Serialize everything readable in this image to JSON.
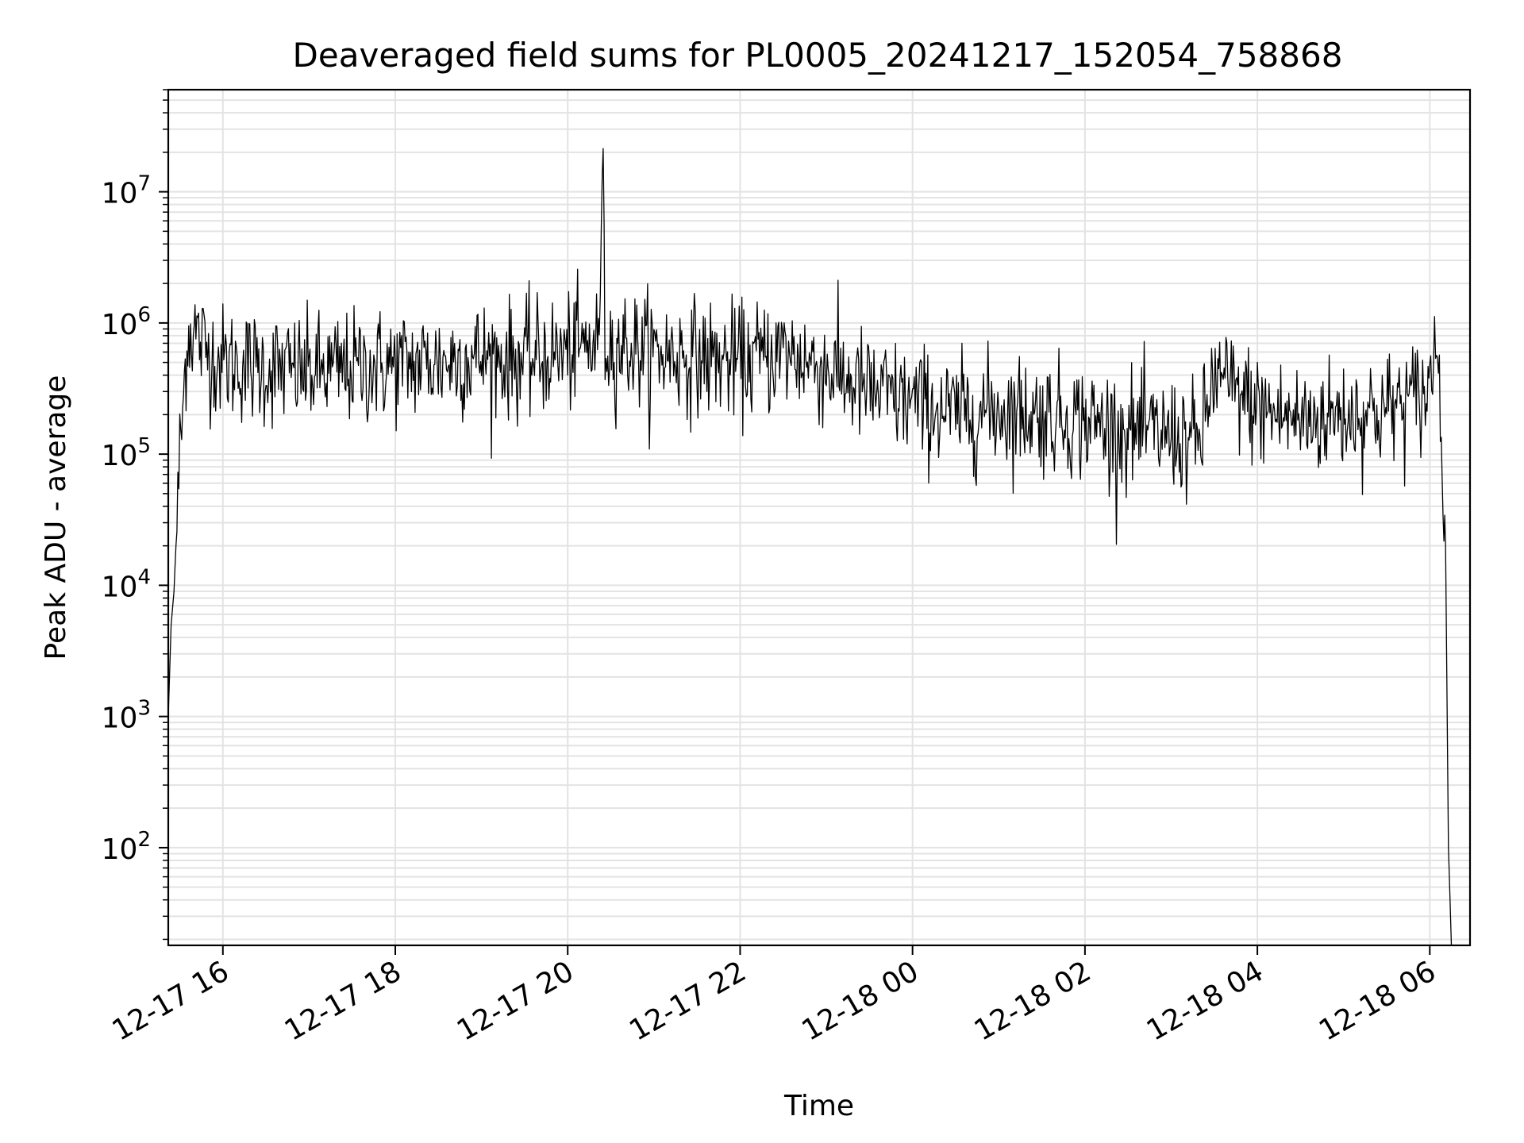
{
  "chart_data": {
    "type": "line",
    "title": "Deaveraged field sums for PL0005_20241217_152054_758868",
    "xlabel": "Time",
    "ylabel": "Peak ADU - average",
    "yscale": "log",
    "xlim": [
      "2024-12-17 15:22",
      "2024-12-18 06:28"
    ],
    "ylim": [
      18,
      60000000
    ],
    "grid": true,
    "legend": "none",
    "line_color": "#000000",
    "x_ticks": [
      "12-17 16",
      "12-17 18",
      "12-17 20",
      "12-17 22",
      "12-18 00",
      "12-18 02",
      "12-18 04",
      "12-18 06"
    ],
    "y_ticks": [
      {
        "base": "10",
        "exp": "2"
      },
      {
        "base": "10",
        "exp": "3"
      },
      {
        "base": "10",
        "exp": "4"
      },
      {
        "base": "10",
        "exp": "5"
      },
      {
        "base": "10",
        "exp": "6"
      },
      {
        "base": "10",
        "exp": "7"
      }
    ],
    "series": [
      {
        "x": [
          "2024-12-17 15:22",
          "2024-12-17 15:24",
          "2024-12-17 15:26",
          "2024-12-17 15:28",
          "2024-12-17 15:30",
          "2024-12-17 15:32",
          "2024-12-17 15:35",
          "2024-12-17 15:40",
          "2024-12-17 15:45",
          "2024-12-17 15:50",
          "2024-12-17 16:00",
          "2024-12-17 16:30",
          "2024-12-17 17:00",
          "2024-12-17 17:30",
          "2024-12-17 18:00",
          "2024-12-17 18:30",
          "2024-12-17 19:00",
          "2024-12-17 19:30",
          "2024-12-17 20:00",
          "2024-12-17 20:22",
          "2024-12-17 20:24",
          "2024-12-17 20:26",
          "2024-12-17 21:00",
          "2024-12-17 21:30",
          "2024-12-17 22:00",
          "2024-12-17 22:30",
          "2024-12-17 23:00",
          "2024-12-17 23:30",
          "2024-12-18 00:00",
          "2024-12-18 00:30",
          "2024-12-18 01:00",
          "2024-12-18 01:30",
          "2024-12-18 02:00",
          "2024-12-18 02:30",
          "2024-12-18 03:00",
          "2024-12-18 03:20",
          "2024-12-18 03:30",
          "2024-12-18 04:00",
          "2024-12-18 04:30",
          "2024-12-18 05:00",
          "2024-12-18 05:30",
          "2024-12-18 06:00",
          "2024-12-18 06:04",
          "2024-12-18 06:08",
          "2024-12-18 06:11",
          "2024-12-18 06:13",
          "2024-12-18 06:15"
        ],
        "y": [
          1000,
          5000,
          9000,
          30000,
          100000,
          200000,
          800000,
          900000,
          700000,
          600000,
          500000,
          450000,
          420000,
          450000,
          480000,
          500000,
          550000,
          520000,
          600000,
          700000,
          25000000,
          700000,
          600000,
          550000,
          500000,
          600000,
          450000,
          300000,
          250000,
          200000,
          220000,
          200000,
          180000,
          150000,
          140000,
          120000,
          400000,
          220000,
          180000,
          200000,
          220000,
          300000,
          900000,
          200000,
          20000,
          100,
          18
        ]
      }
    ]
  }
}
